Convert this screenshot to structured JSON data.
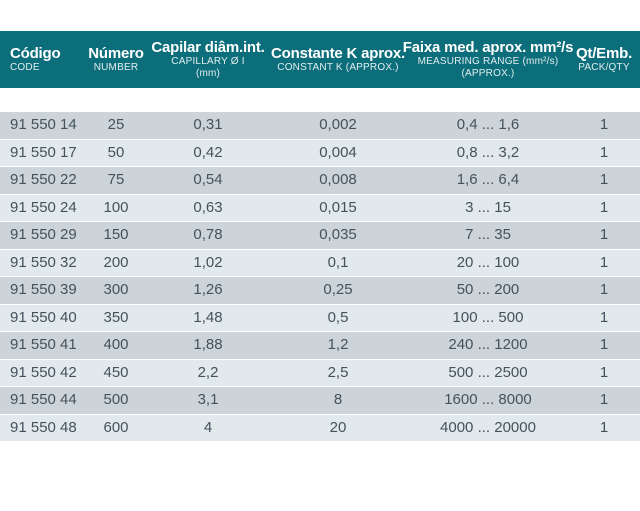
{
  "colors": {
    "header_bg": "#0d6e7b",
    "header_text": "#ffffff",
    "row_dark": "#ccd4da",
    "row_light": "#e2e9ec",
    "cell_text": "#44525c",
    "page_bg": "#ffffff"
  },
  "table": {
    "columns": [
      {
        "key": "codigo",
        "main": "Código",
        "sub": [
          "CODE"
        ]
      },
      {
        "key": "numero",
        "main": "Número",
        "sub": [
          "NUMBER"
        ]
      },
      {
        "key": "capilar",
        "main": "Capilar diâm.int.",
        "sub": [
          "CAPILLARY Ø I",
          "(mm)"
        ]
      },
      {
        "key": "constante",
        "main": "Constante K aprox.",
        "sub": [
          "CONSTANT K (APPROX.)"
        ]
      },
      {
        "key": "faixa",
        "main": "Faixa med. aprox. mm²/s",
        "sub": [
          "MEASURING RANGE (mm²/s)",
          "(APPROX.)"
        ]
      },
      {
        "key": "qt",
        "main": "Qt/Emb.",
        "sub": [
          "PACK/QTY"
        ]
      }
    ],
    "rows": [
      [
        "91 550 14",
        "25",
        "0,31",
        "0,002",
        "0,4 ... 1,6",
        "1"
      ],
      [
        "91 550 17",
        "50",
        "0,42",
        "0,004",
        "0,8 ... 3,2",
        "1"
      ],
      [
        "91 550 22",
        "75",
        "0,54",
        "0,008",
        "1,6 ... 6,4",
        "1"
      ],
      [
        "91 550 24",
        "100",
        "0,63",
        "0,015",
        "3 ... 15",
        "1"
      ],
      [
        "91 550 29",
        "150",
        "0,78",
        "0,035",
        "7 ... 35",
        "1"
      ],
      [
        "91 550 32",
        "200",
        "1,02",
        "0,1",
        "20 ... 100",
        "1"
      ],
      [
        "91 550 39",
        "300",
        "1,26",
        "0,25",
        "50 ... 200",
        "1"
      ],
      [
        "91 550 40",
        "350",
        "1,48",
        "0,5",
        "100 ... 500",
        "1"
      ],
      [
        "91 550 41",
        "400",
        "1,88",
        "1,2",
        "240 ... 1200",
        "1"
      ],
      [
        "91 550 42",
        "450",
        "2,2",
        "2,5",
        "500 ... 2500",
        "1"
      ],
      [
        "91 550 44",
        "500",
        "3,1",
        "8",
        "1600 ... 8000",
        "1"
      ],
      [
        "91 550 48",
        "600",
        "4",
        "20",
        "4000 ... 20000",
        "1"
      ]
    ]
  }
}
